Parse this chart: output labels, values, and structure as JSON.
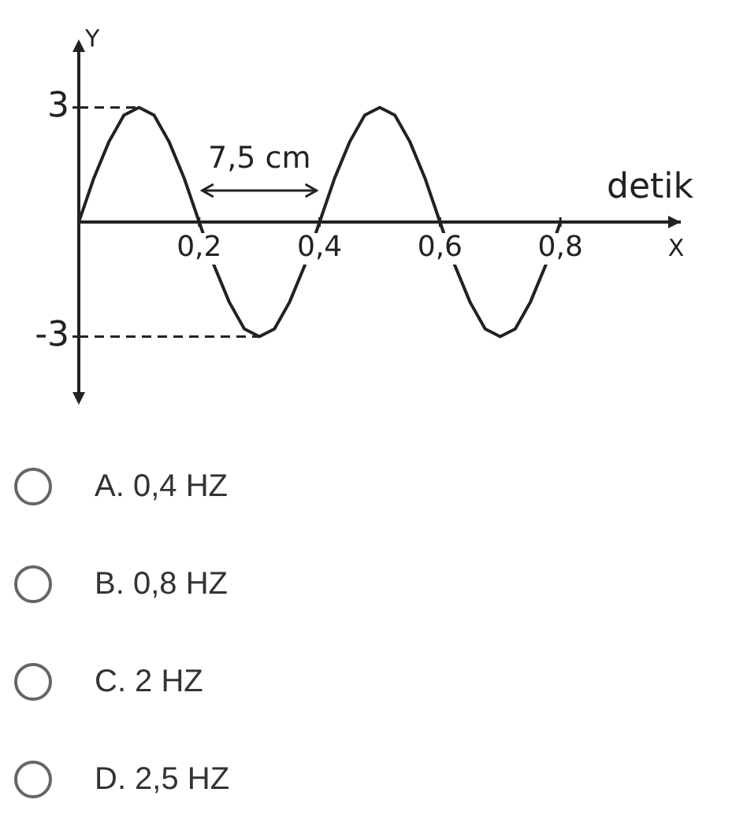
{
  "chart_data": {
    "type": "line",
    "xlabel": "X",
    "ylabel": "Y",
    "x": [
      0,
      0.025,
      0.05,
      0.075,
      0.1,
      0.125,
      0.15,
      0.175,
      0.2,
      0.225,
      0.25,
      0.275,
      0.3,
      0.325,
      0.35,
      0.375,
      0.4,
      0.425,
      0.45,
      0.475,
      0.5,
      0.525,
      0.55,
      0.575,
      0.6,
      0.625,
      0.65,
      0.675,
      0.7,
      0.725,
      0.75,
      0.775,
      0.8
    ],
    "series": [
      {
        "color": "#222222",
        "values": [
          0,
          1.15,
          2.1,
          2.8,
          3,
          2.8,
          2.1,
          1.15,
          0,
          -1.15,
          -2.1,
          -2.8,
          -3,
          -2.8,
          -2.1,
          -1.15,
          0,
          1.15,
          2.1,
          2.8,
          3,
          2.8,
          2.1,
          1.15,
          0,
          -1.15,
          -2.1,
          -2.8,
          -3,
          -2.8,
          -2.1,
          -1.15,
          0
        ]
      }
    ],
    "xlim": [
      0,
      1
    ],
    "ylim": [
      -4.7,
      4.7
    ],
    "xticks": [
      {
        "value": 0.2,
        "label": "0,2"
      },
      {
        "value": 0.4,
        "label": "0,4"
      },
      {
        "value": 0.6,
        "label": "0,6"
      },
      {
        "value": 0.8,
        "label": "0,8"
      }
    ],
    "yticks": [
      3,
      -3
    ],
    "ref_lines": [
      {
        "axis": "y",
        "value": 3,
        "line_style": "dashed"
      },
      {
        "axis": "y",
        "value": -3,
        "line_style": "dashed"
      }
    ],
    "annotations": [
      "7,5 cm",
      "detik",
      "A. 0,4 HZ",
      "B. 0,8 HZ",
      "C. 2 HZ",
      "D. 2,5 HZ"
    ],
    "marker": "none",
    "line_style": "solid",
    "grid": false,
    "legend": false
  }
}
